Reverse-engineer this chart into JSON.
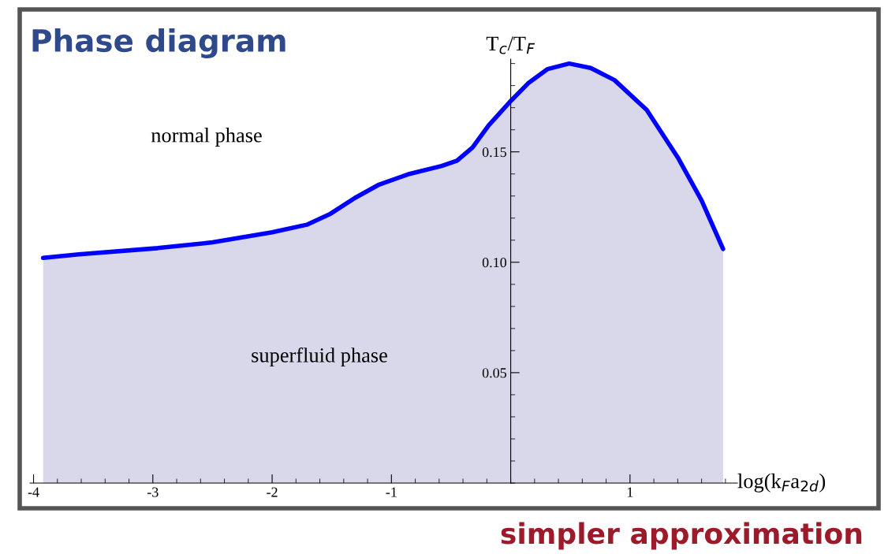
{
  "chart_data": {
    "type": "area",
    "title": "Phase diagram",
    "xlabel": "log(k$_{F}$a$_{2d}$)",
    "ylabel": "T$_{c}$/T$_{F}$",
    "annotations": [
      "normal phase",
      "superfluid phase",
      "simpler approximation"
    ],
    "x": [
      -3.92,
      -3.62,
      -2.96,
      -2.5,
      -2.0,
      -1.71,
      -1.51,
      -1.31,
      -1.11,
      -0.85,
      -0.58,
      -0.45,
      -0.32,
      -0.185,
      0,
      0.145,
      0.31,
      0.49,
      0.67,
      0.87,
      1.14,
      1.4,
      1.6,
      1.78
    ],
    "series": [
      {
        "color": "#0000ff",
        "values": [
          0.102,
          0.1036,
          0.1064,
          0.109,
          0.1136,
          0.117,
          0.122,
          0.129,
          0.135,
          0.14,
          0.1436,
          0.146,
          0.152,
          0.162,
          0.173,
          0.181,
          0.1875,
          0.19,
          0.188,
          0.1825,
          0.169,
          0.1475,
          0.128,
          0.106
        ]
      }
    ],
    "xlim": [
      -4.03,
      1.9
    ],
    "ylim": [
      0,
      0.192
    ],
    "xticks": [
      -4,
      -3,
      -2,
      -1,
      1
    ],
    "yticks": [
      0.05,
      {
        "value": 0.1,
        "label": "0.10"
      },
      0.15
    ],
    "grid": false,
    "legend": false,
    "marker": "none",
    "line_style": "solid"
  }
}
